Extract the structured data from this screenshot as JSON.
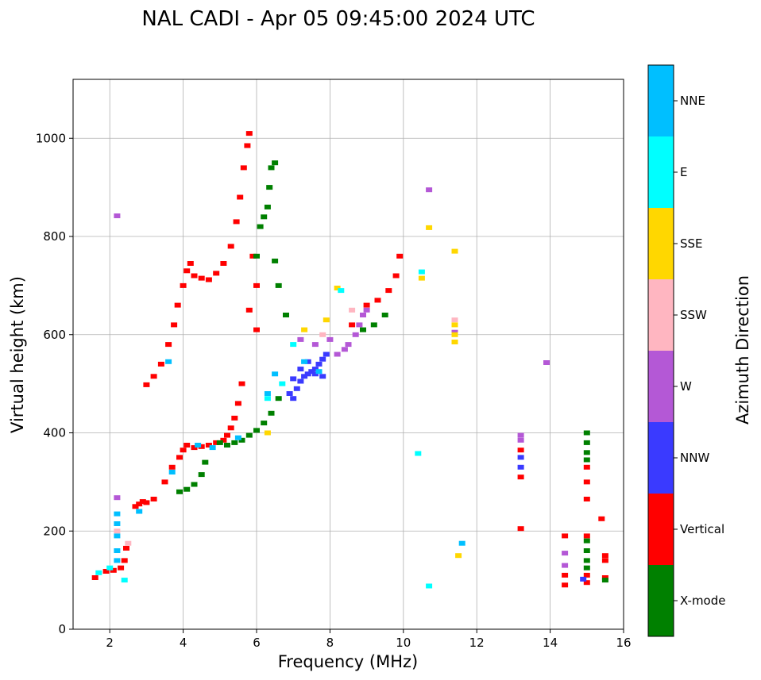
{
  "chart_data": {
    "type": "scatter",
    "title": "NAL CADI - Apr 05 09:45:00 2024 UTC",
    "xlabel": "Frequency (MHz)",
    "ylabel": "Virtual height (km)",
    "xlim": [
      1,
      16
    ],
    "ylim": [
      0,
      1120
    ],
    "xticks": [
      "2",
      "4",
      "6",
      "8",
      "10",
      "12",
      "14",
      "16"
    ],
    "yticks": [
      "0",
      "200",
      "400",
      "600",
      "800",
      "1000"
    ],
    "grid": true,
    "colorbar": {
      "label": "Azimuth Direction",
      "categories": [
        {
          "name": "X-mode",
          "color": "#008000"
        },
        {
          "name": "Vertical",
          "color": "#ff0000"
        },
        {
          "name": "NNW",
          "color": "#3a3aff"
        },
        {
          "name": "W",
          "color": "#b458d6"
        },
        {
          "name": "SSW",
          "color": "#ffb6c1"
        },
        {
          "name": "SSE",
          "color": "#ffd700"
        },
        {
          "name": "E",
          "color": "#00ffff"
        },
        {
          "name": "NNE",
          "color": "#00bfff"
        }
      ]
    },
    "series": [
      {
        "name": "Vertical",
        "points": [
          [
            1.6,
            105
          ],
          [
            1.9,
            118
          ],
          [
            2.1,
            120
          ],
          [
            2.3,
            125
          ],
          [
            2.4,
            140
          ],
          [
            2.45,
            165
          ],
          [
            2.7,
            250
          ],
          [
            2.8,
            255
          ],
          [
            2.9,
            260
          ],
          [
            3.0,
            258
          ],
          [
            3.2,
            265
          ],
          [
            3.5,
            300
          ],
          [
            3.7,
            330
          ],
          [
            3.9,
            350
          ],
          [
            4.0,
            365
          ],
          [
            4.1,
            375
          ],
          [
            4.3,
            370
          ],
          [
            4.5,
            372
          ],
          [
            4.7,
            375
          ],
          [
            4.9,
            380
          ],
          [
            5.1,
            385
          ],
          [
            5.2,
            395
          ],
          [
            5.3,
            410
          ],
          [
            5.4,
            430
          ],
          [
            5.5,
            460
          ],
          [
            5.6,
            500
          ],
          [
            3.0,
            498
          ],
          [
            3.2,
            515
          ],
          [
            3.4,
            540
          ],
          [
            3.6,
            580
          ],
          [
            3.75,
            620
          ],
          [
            3.85,
            660
          ],
          [
            4.0,
            700
          ],
          [
            4.1,
            730
          ],
          [
            4.2,
            745
          ],
          [
            4.3,
            720
          ],
          [
            4.5,
            715
          ],
          [
            4.7,
            712
          ],
          [
            4.9,
            725
          ],
          [
            5.1,
            745
          ],
          [
            5.3,
            780
          ],
          [
            5.45,
            830
          ],
          [
            5.55,
            880
          ],
          [
            5.65,
            940
          ],
          [
            5.75,
            985
          ],
          [
            5.8,
            1010
          ],
          [
            5.9,
            760
          ],
          [
            6.0,
            700
          ],
          [
            5.8,
            650
          ],
          [
            6.0,
            610
          ],
          [
            8.6,
            620
          ],
          [
            8.9,
            640
          ],
          [
            9.0,
            660
          ],
          [
            9.3,
            670
          ],
          [
            9.6,
            690
          ],
          [
            9.8,
            720
          ],
          [
            9.9,
            760
          ],
          [
            13.2,
            365
          ],
          [
            13.2,
            310
          ],
          [
            13.2,
            205
          ],
          [
            14.4,
            190
          ],
          [
            14.4,
            110
          ],
          [
            14.4,
            90
          ],
          [
            15.0,
            330
          ],
          [
            15.0,
            300
          ],
          [
            15.0,
            265
          ],
          [
            15.0,
            190
          ],
          [
            15.0,
            110
          ],
          [
            15.0,
            95
          ],
          [
            15.4,
            225
          ],
          [
            15.5,
            150
          ],
          [
            15.5,
            140
          ],
          [
            15.5,
            105
          ]
        ]
      },
      {
        "name": "X-mode",
        "points": [
          [
            3.9,
            280
          ],
          [
            4.1,
            285
          ],
          [
            4.3,
            295
          ],
          [
            4.5,
            315
          ],
          [
            4.6,
            340
          ],
          [
            5.0,
            380
          ],
          [
            5.2,
            375
          ],
          [
            5.4,
            380
          ],
          [
            5.6,
            385
          ],
          [
            5.8,
            395
          ],
          [
            6.0,
            405
          ],
          [
            6.2,
            420
          ],
          [
            6.4,
            440
          ],
          [
            6.6,
            470
          ],
          [
            6.0,
            760
          ],
          [
            6.1,
            820
          ],
          [
            6.2,
            840
          ],
          [
            6.3,
            860
          ],
          [
            6.35,
            900
          ],
          [
            6.4,
            940
          ],
          [
            6.5,
            950
          ],
          [
            6.5,
            750
          ],
          [
            6.6,
            700
          ],
          [
            6.8,
            640
          ],
          [
            8.9,
            610
          ],
          [
            9.2,
            620
          ],
          [
            9.5,
            640
          ],
          [
            15.0,
            400
          ],
          [
            15.0,
            380
          ],
          [
            15.0,
            360
          ],
          [
            15.0,
            345
          ],
          [
            15.0,
            180
          ],
          [
            15.0,
            160
          ],
          [
            15.0,
            140
          ],
          [
            15.0,
            125
          ],
          [
            15.5,
            100
          ]
        ]
      },
      {
        "name": "NNW",
        "points": [
          [
            7.0,
            470
          ],
          [
            7.1,
            490
          ],
          [
            7.2,
            505
          ],
          [
            7.3,
            515
          ],
          [
            7.4,
            520
          ],
          [
            7.5,
            525
          ],
          [
            7.6,
            530
          ],
          [
            7.7,
            540
          ],
          [
            7.8,
            550
          ],
          [
            7.9,
            560
          ],
          [
            6.9,
            480
          ],
          [
            7.0,
            510
          ],
          [
            7.2,
            530
          ],
          [
            7.4,
            545
          ],
          [
            7.6,
            520
          ],
          [
            7.8,
            515
          ],
          [
            13.2,
            350
          ],
          [
            13.2,
            330
          ],
          [
            14.9,
            102
          ]
        ]
      },
      {
        "name": "W",
        "points": [
          [
            8.2,
            560
          ],
          [
            8.4,
            570
          ],
          [
            8.5,
            580
          ],
          [
            8.7,
            600
          ],
          [
            8.8,
            620
          ],
          [
            8.9,
            640
          ],
          [
            9.0,
            650
          ],
          [
            7.2,
            590
          ],
          [
            7.6,
            580
          ],
          [
            8.0,
            590
          ],
          [
            10.7,
            895
          ],
          [
            13.9,
            543
          ],
          [
            13.2,
            395
          ],
          [
            13.2,
            385
          ],
          [
            14.4,
            155
          ],
          [
            14.4,
            130
          ],
          [
            11.4,
            605
          ],
          [
            2.2,
            268
          ],
          [
            2.2,
            842
          ]
        ]
      },
      {
        "name": "SSW",
        "points": [
          [
            2.2,
            200
          ],
          [
            2.5,
            175
          ],
          [
            11.4,
            630
          ],
          [
            7.8,
            600
          ],
          [
            8.6,
            650
          ]
        ]
      },
      {
        "name": "SSE",
        "points": [
          [
            10.7,
            818
          ],
          [
            10.5,
            715
          ],
          [
            11.4,
            770
          ],
          [
            11.4,
            620
          ],
          [
            11.4,
            600
          ],
          [
            11.4,
            585
          ],
          [
            11.5,
            150
          ],
          [
            7.3,
            610
          ],
          [
            7.9,
            630
          ],
          [
            6.3,
            400
          ],
          [
            8.2,
            695
          ]
        ]
      },
      {
        "name": "E",
        "points": [
          [
            1.7,
            115
          ],
          [
            2.0,
            125
          ],
          [
            2.4,
            100
          ],
          [
            10.4,
            358
          ],
          [
            10.7,
            88
          ],
          [
            8.3,
            690
          ],
          [
            10.5,
            728
          ],
          [
            7.0,
            580
          ],
          [
            6.7,
            500
          ],
          [
            6.3,
            470
          ]
        ]
      },
      {
        "name": "NNE",
        "points": [
          [
            2.2,
            235
          ],
          [
            2.2,
            215
          ],
          [
            2.2,
            190
          ],
          [
            2.2,
            160
          ],
          [
            2.2,
            140
          ],
          [
            2.8,
            240
          ],
          [
            3.7,
            320
          ],
          [
            4.4,
            375
          ],
          [
            4.8,
            370
          ],
          [
            5.5,
            390
          ],
          [
            6.3,
            480
          ],
          [
            6.5,
            520
          ],
          [
            7.3,
            545
          ],
          [
            7.7,
            525
          ],
          [
            3.6,
            545
          ],
          [
            11.6,
            175
          ]
        ]
      }
    ]
  }
}
